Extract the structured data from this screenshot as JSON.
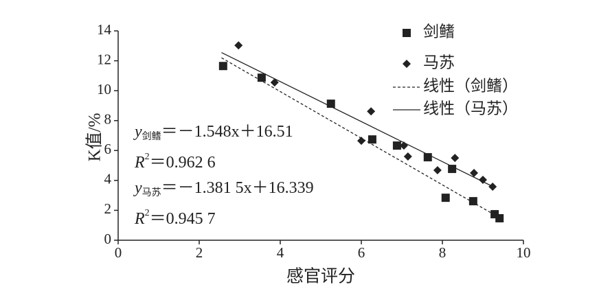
{
  "chart_data": {
    "type": "scatter",
    "xlabel": "感官评分",
    "ylabel": "K值/%",
    "xlim": [
      0,
      10
    ],
    "xticks": [
      0,
      2,
      4,
      6,
      8,
      10
    ],
    "ylim": [
      0,
      14
    ],
    "yticks": [
      0,
      2,
      4,
      6,
      8,
      10,
      12,
      14
    ],
    "legend": "top-right",
    "series": [
      {
        "name": "剑鳍",
        "color": "#222222",
        "marker": "square",
        "x": [
          2.59,
          3.54,
          5.25,
          6.27,
          6.88,
          7.64,
          8.24,
          8.08,
          8.76,
          9.29,
          9.41
        ],
        "values": [
          11.65,
          10.87,
          9.13,
          6.74,
          6.33,
          5.55,
          4.77,
          2.84,
          2.61,
          1.74,
          1.47
        ]
      },
      {
        "name": "马苏",
        "color": "#222222",
        "marker": "diamond",
        "x": [
          2.97,
          3.86,
          6.24,
          6.0,
          7.05,
          7.15,
          8.31,
          7.88,
          8.78,
          9.0,
          9.24
        ],
        "values": [
          13.03,
          10.55,
          8.62,
          6.65,
          6.33,
          5.6,
          5.5,
          4.68,
          4.5,
          4.04,
          3.58
        ]
      },
      {
        "name": "线性（剑鳍）",
        "color": "#222222",
        "line": "dashed",
        "x": [
          2.55,
          9.35
        ],
        "values": [
          12.2,
          1.6
        ]
      },
      {
        "name": "线性（马苏）",
        "color": "#222222",
        "line": "solid",
        "x": [
          2.55,
          9.2
        ],
        "values": [
          12.55,
          3.65
        ]
      }
    ],
    "annotations": [
      {
        "text": "y",
        "sub": "剑鳍",
        "rest": "＝－1.548x＋16.51"
      },
      {
        "text": "R",
        "sup": "2",
        "rest": "＝0.962 6"
      },
      {
        "text": "y",
        "sub": "马苏",
        "rest": "＝－1.381 5x＋16.339"
      },
      {
        "text": "R",
        "sup": "2",
        "rest": "＝0.945 7"
      }
    ]
  }
}
